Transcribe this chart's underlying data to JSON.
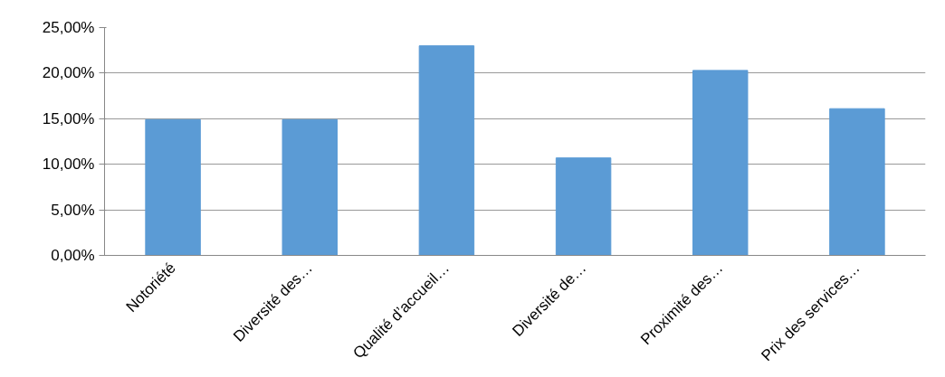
{
  "chart_data": {
    "type": "bar",
    "categories": [
      "Notoriété",
      "Diversité des…",
      "Qualité d’accueil…",
      "Diversité de…",
      "Proximité des…",
      "Prix des services…"
    ],
    "values": [
      14.9,
      14.9,
      23.0,
      10.7,
      20.3,
      16.1
    ],
    "color": "#5b9bd5",
    "ylim": [
      0,
      25
    ],
    "yticks": [
      {
        "value": 0,
        "label": "0,00%"
      },
      {
        "value": 5,
        "label": "5,00%"
      },
      {
        "value": 10,
        "label": "10,00%"
      },
      {
        "value": 15,
        "label": "15,00%"
      },
      {
        "value": 20,
        "label": "20,00%"
      },
      {
        "value": 25,
        "label": "25,00%"
      }
    ],
    "grid": "y"
  }
}
